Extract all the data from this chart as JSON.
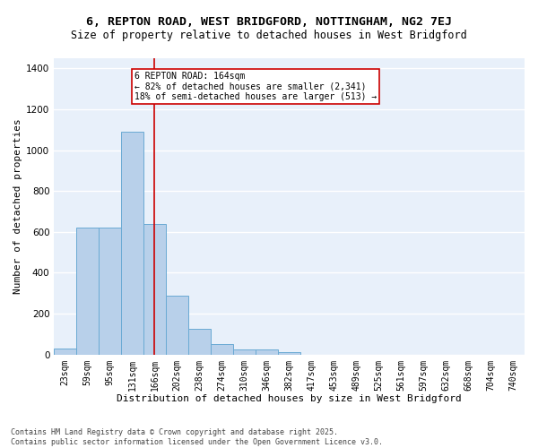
{
  "title_line1": "6, REPTON ROAD, WEST BRIDGFORD, NOTTINGHAM, NG2 7EJ",
  "title_line2": "Size of property relative to detached houses in West Bridgford",
  "xlabel": "Distribution of detached houses by size in West Bridgford",
  "ylabel": "Number of detached properties",
  "bar_labels": [
    "23sqm",
    "59sqm",
    "95sqm",
    "131sqm",
    "166sqm",
    "202sqm",
    "238sqm",
    "274sqm",
    "310sqm",
    "346sqm",
    "382sqm",
    "417sqm",
    "453sqm",
    "489sqm",
    "525sqm",
    "561sqm",
    "597sqm",
    "632sqm",
    "668sqm",
    "704sqm",
    "740sqm"
  ],
  "bar_values": [
    30,
    620,
    620,
    1090,
    640,
    290,
    125,
    50,
    27,
    25,
    10,
    0,
    0,
    0,
    0,
    0,
    0,
    0,
    0,
    0,
    0
  ],
  "bar_color": "#b8d0ea",
  "bar_edge_color": "#6aaad4",
  "vline_color": "#cc0000",
  "annotation_text": "6 REPTON ROAD: 164sqm\n← 82% of detached houses are smaller (2,341)\n18% of semi-detached houses are larger (513) →",
  "annotation_box_color": "#cc0000",
  "ylim": [
    0,
    1450
  ],
  "yticks": [
    0,
    200,
    400,
    600,
    800,
    1000,
    1200,
    1400
  ],
  "background_color": "#e8f0fa",
  "grid_color": "#ffffff",
  "footer_line1": "Contains HM Land Registry data © Crown copyright and database right 2025.",
  "footer_line2": "Contains public sector information licensed under the Open Government Licence v3.0.",
  "title_fontsize": 9.5,
  "subtitle_fontsize": 8.5,
  "axis_label_fontsize": 8,
  "tick_fontsize": 7,
  "annotation_fontsize": 7,
  "footer_fontsize": 6
}
